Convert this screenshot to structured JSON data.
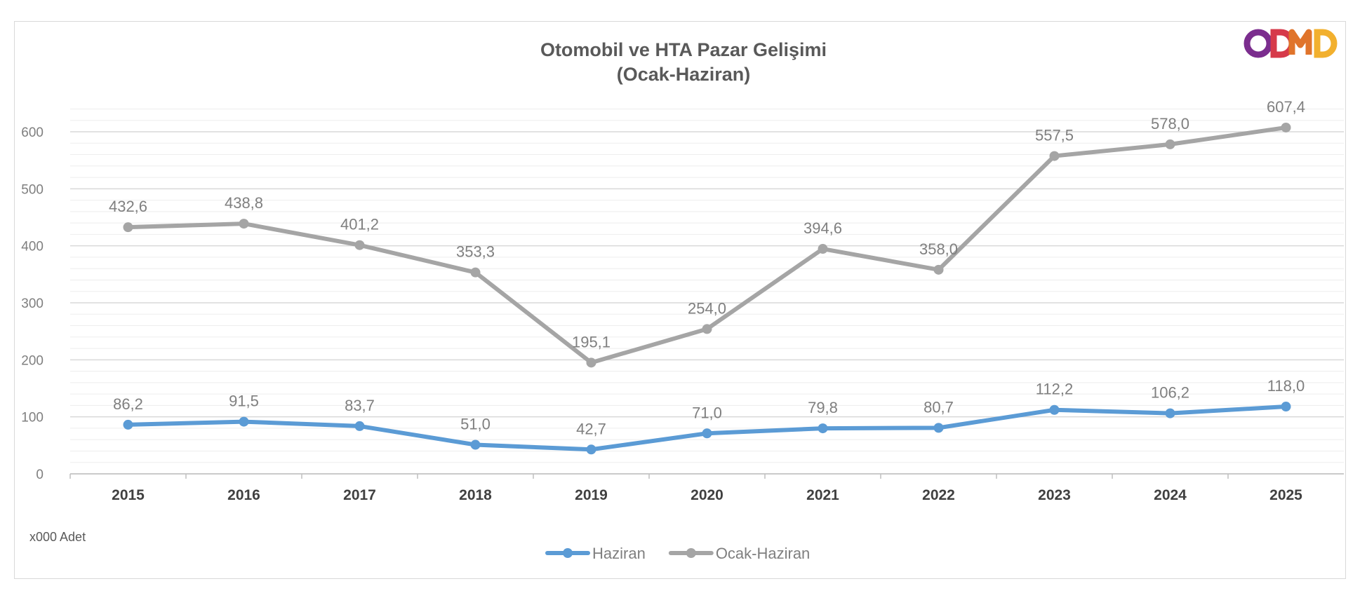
{
  "chart_data": {
    "type": "line",
    "title": "Otomobil ve HTA Pazar Gelişimi",
    "subtitle": "(Ocak-Haziran)",
    "unit_note": "x000 Adet",
    "logo_text": "ODMD",
    "categories": [
      "2015",
      "2016",
      "2017",
      "2018",
      "2019",
      "2020",
      "2021",
      "2022",
      "2023",
      "2024",
      "2025"
    ],
    "ylim": [
      0,
      600
    ],
    "yticks": [
      "0",
      "100",
      "200",
      "300",
      "400",
      "500",
      "600"
    ],
    "grid": true,
    "legend_position": "bottom",
    "series": [
      {
        "name": "Haziran",
        "color": "#5b9bd5",
        "values": [
          86.2,
          91.5,
          83.7,
          51.0,
          42.7,
          71.0,
          79.8,
          80.7,
          112.2,
          106.2,
          118.0
        ],
        "labels": [
          "86,2",
          "91,5",
          "83,7",
          "51,0",
          "42,7",
          "71,0",
          "79,8",
          "80,7",
          "112,2",
          "106,2",
          "118,0"
        ]
      },
      {
        "name": "Ocak-Haziran",
        "color": "#a5a5a5",
        "values": [
          432.6,
          438.8,
          401.2,
          353.3,
          195.1,
          254.0,
          394.6,
          358.0,
          557.5,
          578.0,
          607.4
        ],
        "labels": [
          "432,6",
          "438,8",
          "401,2",
          "353,3",
          "195,1",
          "254,0",
          "394,6",
          "358,0",
          "557,5",
          "578,0",
          "607,4"
        ]
      }
    ]
  }
}
